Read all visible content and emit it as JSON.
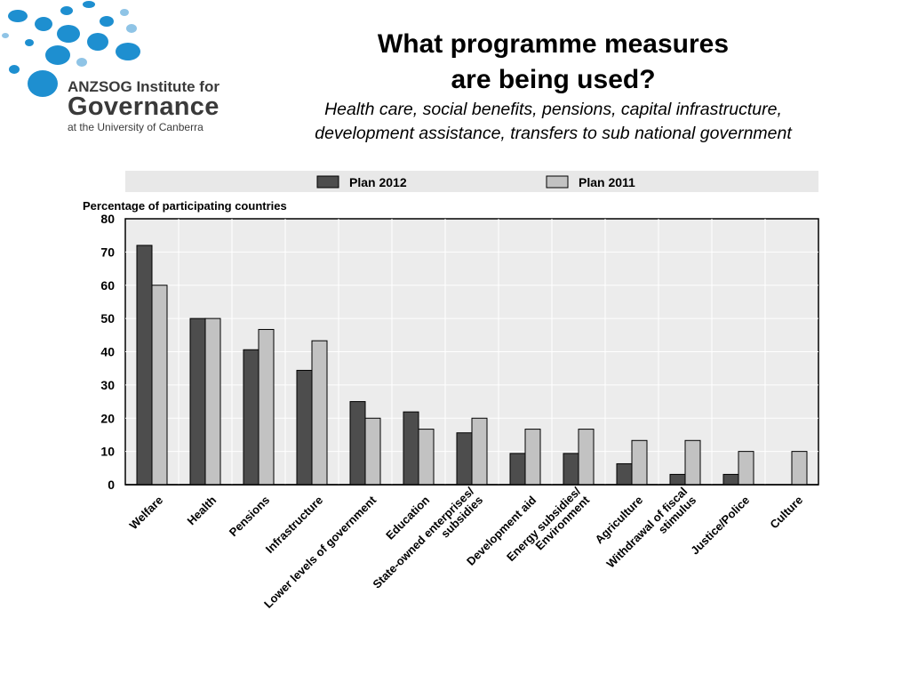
{
  "logo": {
    "line1": "ANZSOG Institute for",
    "line2": "Governance",
    "line3": "at the University of Canberra",
    "accent_color": "#1e8fd0",
    "light_color": "#8fc4e6"
  },
  "header": {
    "title_lines": [
      "What programme measures",
      "are being used?"
    ],
    "subtitle_lines": [
      "Health care, social benefits, pensions, capital infrastructure,",
      "development assistance, transfers to sub national government"
    ]
  },
  "chart_data": {
    "type": "bar",
    "ylabel": "Percentage of participating countries",
    "ylim": [
      0,
      80
    ],
    "yticks": [
      0,
      10,
      20,
      30,
      40,
      50,
      60,
      70,
      80
    ],
    "grid": true,
    "legend_position": "top",
    "categories": [
      [
        "Welfare"
      ],
      [
        "Health"
      ],
      [
        "Pensions"
      ],
      [
        "Infrastructure"
      ],
      [
        "Lower levels of government"
      ],
      [
        "Education"
      ],
      [
        "State-owned enterprises/",
        "subsidies"
      ],
      [
        "Development aid"
      ],
      [
        "Energy subsidies/",
        "Environment"
      ],
      [
        "Agriculture"
      ],
      [
        "Withdrawal of fiscal",
        "stimulus"
      ],
      [
        "Justice/Police"
      ],
      [
        "Culture"
      ]
    ],
    "series": [
      {
        "name": "Plan 2012",
        "color": "#4d4d4d",
        "values": [
          72,
          50,
          40.6,
          34.4,
          25,
          21.9,
          15.6,
          9.4,
          9.4,
          6.3,
          3.1,
          3.1,
          0
        ]
      },
      {
        "name": "Plan 2011",
        "color": "#c2c2c2",
        "values": [
          60,
          50,
          46.7,
          43.3,
          20,
          16.7,
          20,
          16.7,
          16.7,
          13.3,
          13.3,
          10,
          10
        ]
      }
    ]
  }
}
